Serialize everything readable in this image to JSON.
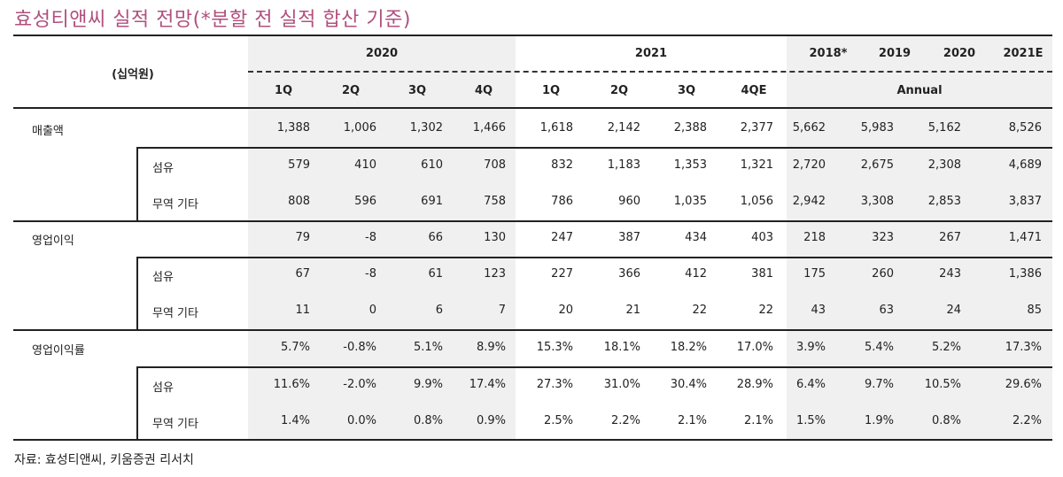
{
  "title": "효성티앤씨 실적 전망(*분할 전 실적 합산 기준)",
  "unit_label": "(십억원)",
  "header": {
    "groups": [
      "2020",
      "2021"
    ],
    "annual_years": [
      "2018*",
      "2019",
      "2020",
      "2021E"
    ],
    "quarters": [
      "1Q",
      "2Q",
      "3Q",
      "4Q",
      "1Q",
      "2Q",
      "3Q",
      "4QE"
    ],
    "annual_label": "Annual"
  },
  "colors": {
    "title": "#b0507e",
    "shade": "#f0f0f0",
    "rule": "#222222"
  },
  "rows": [
    {
      "label": "매출액",
      "level": 0,
      "values": [
        "1,388",
        "1,006",
        "1,302",
        "1,466",
        "1,618",
        "2,142",
        "2,388",
        "2,377",
        "5,662",
        "5,983",
        "5,162",
        "8,526"
      ]
    },
    {
      "label": "섬유",
      "level": 1,
      "values": [
        "579",
        "410",
        "610",
        "708",
        "832",
        "1,183",
        "1,353",
        "1,321",
        "2,720",
        "2,675",
        "2,308",
        "4,689"
      ]
    },
    {
      "label": "무역 기타",
      "level": 1,
      "values": [
        "808",
        "596",
        "691",
        "758",
        "786",
        "960",
        "1,035",
        "1,056",
        "2,942",
        "3,308",
        "2,853",
        "3,837"
      ]
    },
    {
      "label": "영업이익",
      "level": 0,
      "values": [
        "79",
        "-8",
        "66",
        "130",
        "247",
        "387",
        "434",
        "403",
        "218",
        "323",
        "267",
        "1,471"
      ]
    },
    {
      "label": "섬유",
      "level": 1,
      "values": [
        "67",
        "-8",
        "61",
        "123",
        "227",
        "366",
        "412",
        "381",
        "175",
        "260",
        "243",
        "1,386"
      ]
    },
    {
      "label": "무역 기타",
      "level": 1,
      "values": [
        "11",
        "0",
        "6",
        "7",
        "20",
        "21",
        "22",
        "22",
        "43",
        "63",
        "24",
        "85"
      ]
    },
    {
      "label": "영업이익률",
      "level": 0,
      "values": [
        "5.7%",
        "-0.8%",
        "5.1%",
        "8.9%",
        "15.3%",
        "18.1%",
        "18.2%",
        "17.0%",
        "3.9%",
        "5.4%",
        "5.2%",
        "17.3%"
      ]
    },
    {
      "label": "섬유",
      "level": 1,
      "values": [
        "11.6%",
        "-2.0%",
        "9.9%",
        "17.4%",
        "27.3%",
        "31.0%",
        "30.4%",
        "28.9%",
        "6.4%",
        "9.7%",
        "10.5%",
        "29.6%"
      ]
    },
    {
      "label": "무역 기타",
      "level": 1,
      "values": [
        "1.4%",
        "0.0%",
        "0.8%",
        "0.9%",
        "2.5%",
        "2.2%",
        "2.1%",
        "2.1%",
        "1.5%",
        "1.9%",
        "0.8%",
        "2.2%"
      ]
    }
  ],
  "source": "자료: 효성티앤씨, 키움증권 리서치"
}
